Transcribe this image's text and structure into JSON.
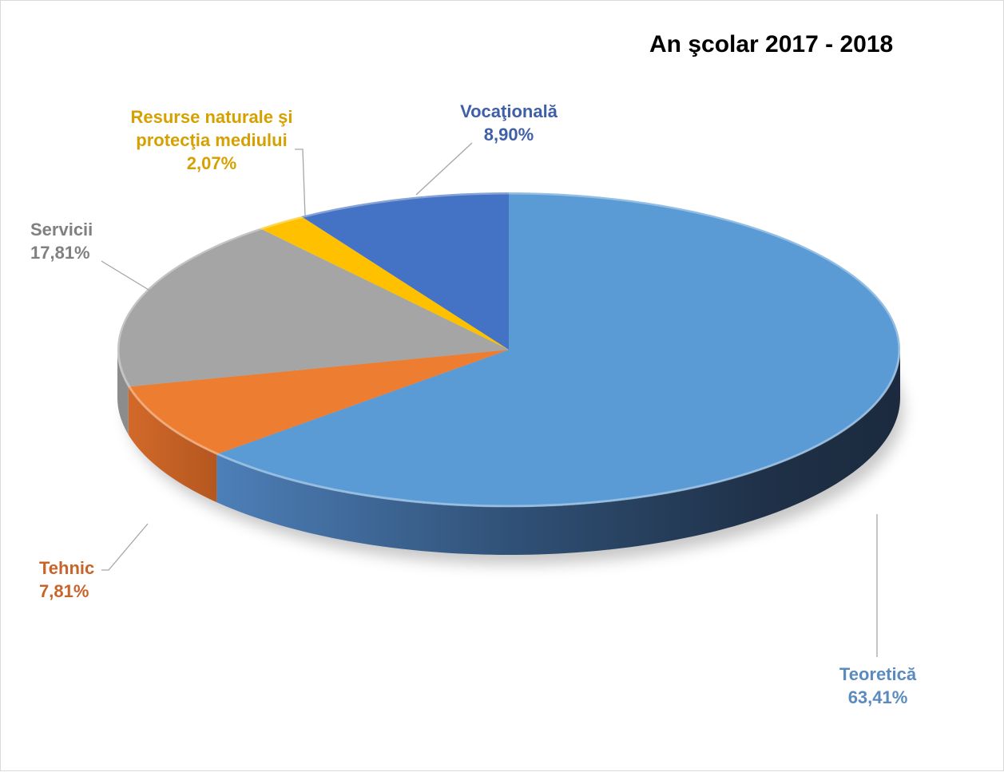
{
  "chart_data": {
    "type": "pie",
    "title": "An şcolar 2017 - 2018",
    "slices": [
      {
        "name": "Teoretică",
        "value": 63.41,
        "label": "63,41%",
        "color": "#5B9BD5"
      },
      {
        "name": "Tehnic",
        "value": 7.81,
        "label": "7,81%",
        "color": "#ED7D31"
      },
      {
        "name": "Servicii",
        "value": 17.81,
        "label": "17,81%",
        "color": "#A5A5A5"
      },
      {
        "name_lines": [
          "Resurse naturale şi",
          "protecţia mediului"
        ],
        "value": 2.07,
        "label": "2,07%",
        "color": "#FFC000"
      },
      {
        "name": "Vocaţională",
        "value": 8.9,
        "label": "8,90%",
        "color": "#4472C4"
      }
    ],
    "label_colors": {
      "teoretica": "#5B8BBE",
      "tehnic": "#C8642A",
      "servicii": "#808080",
      "resurse": "#D6A100",
      "vocationala": "#3F5FA8"
    },
    "style": "3d-exploded-none",
    "leader_lines": true
  }
}
